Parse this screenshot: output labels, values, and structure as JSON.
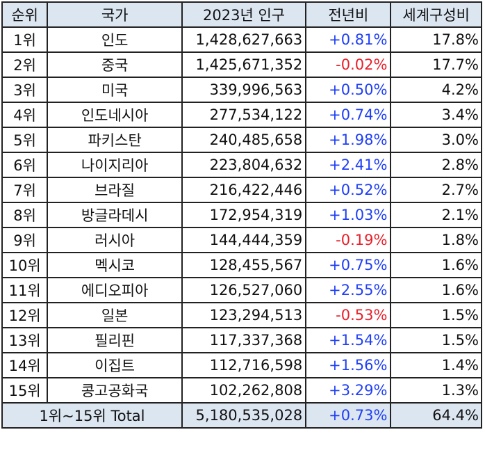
{
  "headers": {
    "rank": "순위",
    "country": "국가",
    "population": "2023년 인구",
    "yoy": "전년비",
    "share": "세계구성비"
  },
  "rows": [
    {
      "rank": "1위",
      "country": "인도",
      "population": "1,428,627,663",
      "yoy": "+0.81%",
      "share": "17.8%"
    },
    {
      "rank": "2위",
      "country": "중국",
      "population": "1,425,671,352",
      "yoy": "-0.02%",
      "share": "17.7%"
    },
    {
      "rank": "3위",
      "country": "미국",
      "population": "339,996,563",
      "yoy": "+0.50%",
      "share": "4.2%"
    },
    {
      "rank": "4위",
      "country": "인도네시아",
      "population": "277,534,122",
      "yoy": "+0.74%",
      "share": "3.4%"
    },
    {
      "rank": "5위",
      "country": "파키스탄",
      "population": "240,485,658",
      "yoy": "+1.98%",
      "share": "3.0%"
    },
    {
      "rank": "6위",
      "country": "나이지리아",
      "population": "223,804,632",
      "yoy": "+2.41%",
      "share": "2.8%"
    },
    {
      "rank": "7위",
      "country": "브라질",
      "population": "216,422,446",
      "yoy": "+0.52%",
      "share": "2.7%"
    },
    {
      "rank": "8위",
      "country": "방글라데시",
      "population": "172,954,319",
      "yoy": "+1.03%",
      "share": "2.1%"
    },
    {
      "rank": "9위",
      "country": "러시아",
      "population": "144,444,359",
      "yoy": "-0.19%",
      "share": "1.8%"
    },
    {
      "rank": "10위",
      "country": "멕시코",
      "population": "128,455,567",
      "yoy": "+0.75%",
      "share": "1.6%"
    },
    {
      "rank": "11위",
      "country": "에디오피아",
      "population": "126,527,060",
      "yoy": "+2.55%",
      "share": "1.6%"
    },
    {
      "rank": "12위",
      "country": "일본",
      "population": "123,294,513",
      "yoy": "-0.53%",
      "share": "1.5%"
    },
    {
      "rank": "13위",
      "country": "필리핀",
      "population": "117,337,368",
      "yoy": "+1.54%",
      "share": "1.5%"
    },
    {
      "rank": "14위",
      "country": "이집트",
      "population": "112,716,598",
      "yoy": "+1.56%",
      "share": "1.4%"
    },
    {
      "rank": "15위",
      "country": "콩고공화국",
      "population": "102,262,808",
      "yoy": "+3.29%",
      "share": "1.3%"
    }
  ],
  "total": {
    "label": "1위~15위 Total",
    "population": "5,180,535,028",
    "yoy": "+0.73%",
    "share": "64.4%"
  },
  "colors": {
    "header_bg": "#dce6f1",
    "positive": "#1f3ff5",
    "negative": "#e8202a",
    "border": "#222222"
  }
}
